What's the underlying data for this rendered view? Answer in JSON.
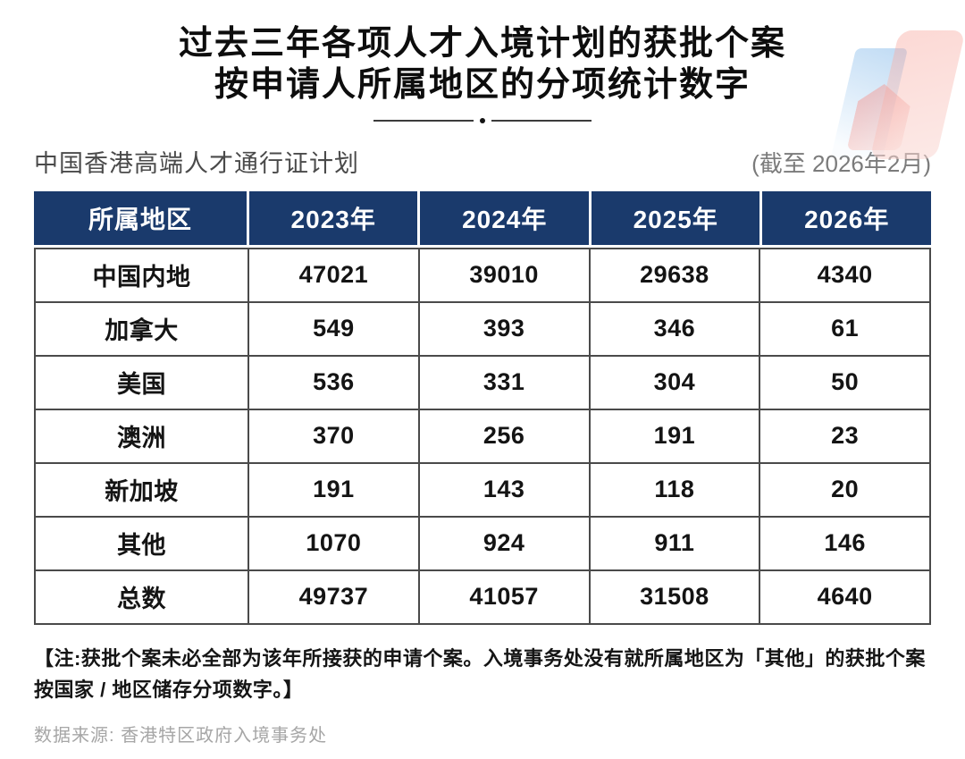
{
  "page": {
    "title_line1": "过去三年各项人才入境计划的获批个案",
    "title_line2": "按申请人所属地区的分项统计数字",
    "scheme_label": "中国香港高端人才通行证计划",
    "as_of_label": "(截至 2026年2月)",
    "note": "【注:获批个案未必全部为该年所接获的申请个案。入境事务处没有就所属地区为「其他」的获批个案按国家 / 地区储存分项数字。】",
    "source": "数据来源: 香港特区政府入境事务处"
  },
  "colors": {
    "header_bg": "#1a3a6c",
    "table_border": "#4a4a4a",
    "deco_blue": "#8cbeeb",
    "deco_pink": "#f2968c"
  },
  "table": {
    "headers": [
      "所属地区",
      "2023年",
      "2024年",
      "2025年",
      "2026年"
    ],
    "rows": [
      {
        "region": "中国内地",
        "values": [
          "47021",
          "39010",
          "29638",
          "4340"
        ]
      },
      {
        "region": "加拿大",
        "values": [
          "549",
          "393",
          "346",
          "61"
        ]
      },
      {
        "region": "美国",
        "values": [
          "536",
          "331",
          "304",
          "50"
        ]
      },
      {
        "region": "澳洲",
        "values": [
          "370",
          "256",
          "191",
          "23"
        ]
      },
      {
        "region": "新加坡",
        "values": [
          "191",
          "143",
          "118",
          "20"
        ]
      },
      {
        "region": "其他",
        "values": [
          "1070",
          "924",
          "911",
          "146"
        ]
      },
      {
        "region": "总数",
        "values": [
          "49737",
          "41057",
          "31508",
          "4640"
        ]
      }
    ]
  },
  "chart_data": {
    "type": "table",
    "title": "过去三年各项人才入境计划的获批个案 按申请人所属地区的分项统计数字",
    "subtitle": "中国香港高端人才通行证计划 (截至 2026年2月)",
    "columns": [
      "所属地区",
      "2023年",
      "2024年",
      "2025年",
      "2026年"
    ],
    "rows": [
      [
        "中国内地",
        47021,
        39010,
        29638,
        4340
      ],
      [
        "加拿大",
        549,
        393,
        346,
        61
      ],
      [
        "美国",
        536,
        331,
        304,
        50
      ],
      [
        "澳洲",
        370,
        256,
        191,
        23
      ],
      [
        "新加坡",
        191,
        143,
        118,
        20
      ],
      [
        "其他",
        1070,
        924,
        911,
        146
      ],
      [
        "总数",
        49737,
        41057,
        31508,
        4640
      ]
    ],
    "note": "获批个案未必全部为该年所接获的申请个案。入境事务处没有就所属地区为「其他」的获批个案按国家 / 地区储存分项数字。",
    "source": "香港特区政府入境事务处"
  }
}
